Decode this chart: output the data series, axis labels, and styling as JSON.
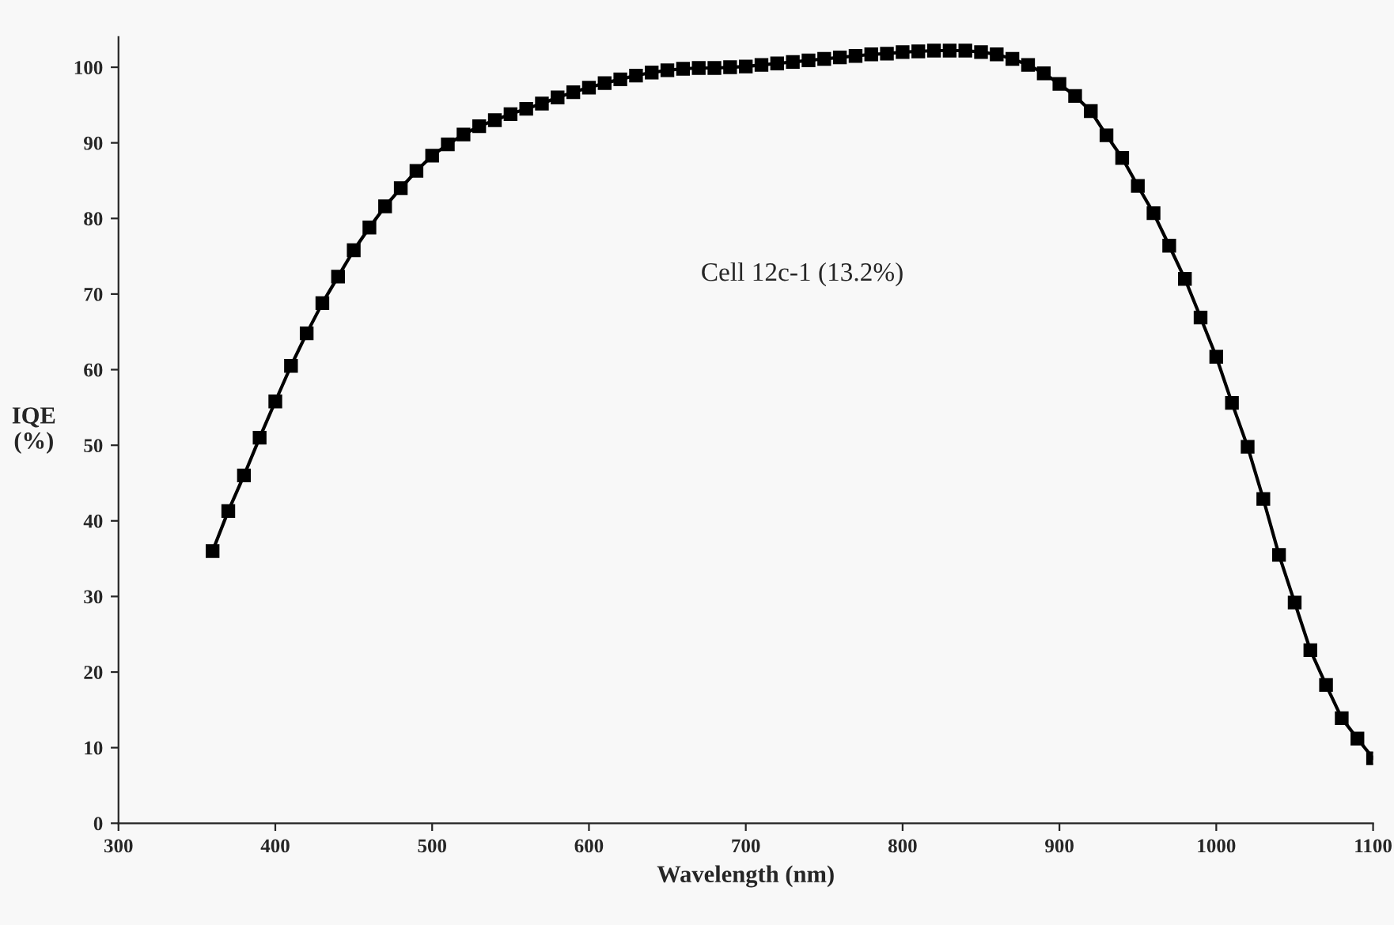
{
  "chart_data": {
    "type": "line",
    "xlabel": "Wavelength (nm)",
    "ylabel": "IQE\n(%)",
    "annotations": [
      "Cell 12c-1 (13.2%)"
    ],
    "x": [
      360,
      370,
      380,
      390,
      400,
      410,
      420,
      430,
      440,
      450,
      460,
      470,
      480,
      490,
      500,
      510,
      520,
      530,
      540,
      550,
      560,
      570,
      580,
      590,
      600,
      610,
      620,
      630,
      640,
      650,
      660,
      670,
      680,
      690,
      700,
      710,
      720,
      730,
      740,
      750,
      760,
      770,
      780,
      790,
      800,
      810,
      820,
      830,
      840,
      850,
      860,
      870,
      880,
      890,
      900,
      910,
      920,
      930,
      940,
      950,
      960,
      970,
      980,
      990,
      1000,
      1010,
      1020,
      1030,
      1040,
      1050,
      1060,
      1070,
      1080,
      1090,
      1100
    ],
    "series": [
      {
        "color": "#000000",
        "values": [
          36,
          41.3,
          46,
          51,
          55.8,
          60.5,
          64.8,
          68.8,
          72.3,
          75.8,
          78.8,
          81.6,
          84,
          86.3,
          88.3,
          89.8,
          91.1,
          92.2,
          93,
          93.8,
          94.5,
          95.2,
          96,
          96.7,
          97.3,
          97.9,
          98.4,
          98.9,
          99.3,
          99.6,
          99.8,
          99.9,
          99.9,
          100,
          100.1,
          100.3,
          100.5,
          100.7,
          100.9,
          101.1,
          101.3,
          101.5,
          101.7,
          101.8,
          102,
          102.1,
          102.2,
          102.2,
          102.2,
          102,
          101.7,
          101.1,
          100.3,
          99.2,
          97.8,
          96.2,
          94.2,
          91,
          88,
          84.3,
          80.7,
          76.4,
          72,
          66.9,
          61.7,
          55.6,
          49.8,
          42.9,
          35.5,
          29.2,
          22.9,
          18.3,
          13.9,
          11.2,
          8.6
        ]
      }
    ],
    "xlim": [
      300,
      1100
    ],
    "xticks": [
      300,
      400,
      500,
      600,
      700,
      800,
      900,
      1000,
      1100
    ],
    "ylim": [
      0,
      104
    ],
    "yticks": [
      0,
      10,
      20,
      30,
      40,
      50,
      60,
      70,
      80,
      90,
      100
    ],
    "marker": "square",
    "line_style": "solid",
    "grid": false,
    "legend": false
  }
}
